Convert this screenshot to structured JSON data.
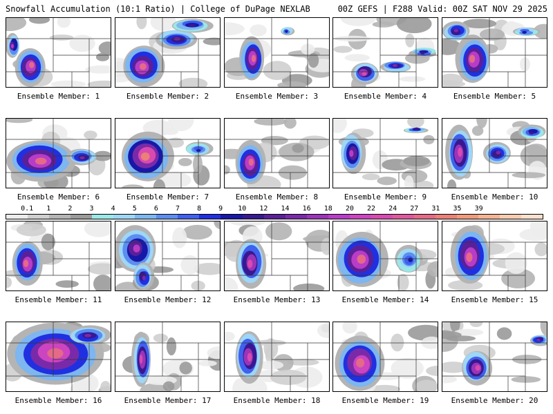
{
  "header": {
    "left": "Snowfall Accumulation (10:1 Ratio) | College of DuPage NEXLAB",
    "right": "00Z GEFS | F288 Valid: 00Z SAT NOV 29 2025"
  },
  "colorbar": {
    "labels": [
      "0.1",
      "1",
      "2",
      "3",
      "4",
      "5",
      "6",
      "7",
      "8",
      "9",
      "10",
      "12",
      "14",
      "16",
      "18",
      "20",
      "22",
      "24",
      "27",
      "31",
      "35",
      "39"
    ],
    "colors": [
      "#ececec",
      "#cfcfcf",
      "#b4b4b4",
      "#9a9a9a",
      "#9ae8e8",
      "#9ed6f7",
      "#7db6f0",
      "#5b8ef0",
      "#4060ee",
      "#2030e0",
      "#1818a8",
      "#381890",
      "#5a2098",
      "#7a2aa8",
      "#9a34b8",
      "#b83cc8",
      "#cc44c0",
      "#d84ab0",
      "#e0589c",
      "#e46a88",
      "#ea8078",
      "#f09a7c",
      "#f4b494",
      "#f8ccb0",
      "#fbe0cc"
    ]
  },
  "panels": [
    {
      "label": "Ensemble Member: 1"
    },
    {
      "label": "Ensemble Member: 2"
    },
    {
      "label": "Ensemble Member: 3"
    },
    {
      "label": "Ensemble Member: 4"
    },
    {
      "label": "Ensemble Member: 5"
    },
    {
      "label": "Ensemble Member: 6"
    },
    {
      "label": "Ensemble Member: 7"
    },
    {
      "label": "Ensemble Member: 8"
    },
    {
      "label": "Ensemble Member: 9"
    },
    {
      "label": "Ensemble Member: 10"
    },
    {
      "label": "Ensemble Member: 11"
    },
    {
      "label": "Ensemble Member: 12"
    },
    {
      "label": "Ensemble Member: 13"
    },
    {
      "label": "Ensemble Member: 14"
    },
    {
      "label": "Ensemble Member: 15"
    },
    {
      "label": "Ensemble Member: 16"
    },
    {
      "label": "Ensemble Member: 17"
    },
    {
      "label": "Ensemble Member: 18"
    },
    {
      "label": "Ensemble Member: 19"
    },
    {
      "label": "Ensemble Member: 20"
    }
  ]
}
